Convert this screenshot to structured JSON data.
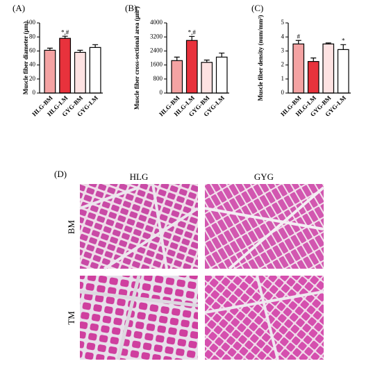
{
  "chart_data": [
    {
      "type": "bar",
      "panel": "(A)",
      "ylabel": "Muscle fiber diameter (μm)",
      "categories": [
        "HLG-BM",
        "HLG-LM",
        "GYG-BM",
        "GYG-LM"
      ],
      "values": [
        61,
        78,
        58,
        65
      ],
      "errors": [
        3,
        3,
        3,
        4
      ],
      "annotations": [
        null,
        "*,#",
        null,
        null
      ],
      "colors": [
        "#f4a3a3",
        "#e8323c",
        "#fde2e2",
        "#ffffff"
      ],
      "ylim": [
        0,
        100
      ],
      "yticks": [
        0,
        20,
        40,
        60,
        80,
        100
      ]
    },
    {
      "type": "bar",
      "panel": "(B)",
      "ylabel": "Muscle fiber cross-sectional area (μm²)",
      "categories": [
        "HLG-BM",
        "HLG-LM",
        "GYG-BM",
        "GYG-LM"
      ],
      "values": [
        1850,
        3000,
        1750,
        2050
      ],
      "errors": [
        200,
        230,
        130,
        230
      ],
      "annotations": [
        null,
        "*,#",
        null,
        null
      ],
      "colors": [
        "#f4a3a3",
        "#e8323c",
        "#fde2e2",
        "#ffffff"
      ],
      "ylim": [
        0,
        4000
      ],
      "yticks": [
        0,
        800,
        1600,
        2400,
        3200,
        4000
      ]
    },
    {
      "type": "bar",
      "panel": "(C)",
      "ylabel": "Muscle fiber density (num/mm²)",
      "categories": [
        "HLG-BM",
        "HLG-LM",
        "GYG-BM",
        "GYG-LM"
      ],
      "values": [
        3.5,
        2.25,
        3.5,
        3.1
      ],
      "errors": [
        0.25,
        0.25,
        0.07,
        0.35
      ],
      "annotations": [
        "#",
        null,
        null,
        "*"
      ],
      "colors": [
        "#f4a3a3",
        "#e8323c",
        "#fde2e2",
        "#ffffff"
      ],
      "ylim": [
        0,
        5
      ],
      "yticks": [
        0,
        1,
        2,
        3,
        4,
        5
      ]
    }
  ],
  "panel_d": {
    "label": "(D)",
    "columns": [
      "HLG",
      "GYG"
    ],
    "rows": [
      "BM",
      "TM"
    ]
  }
}
